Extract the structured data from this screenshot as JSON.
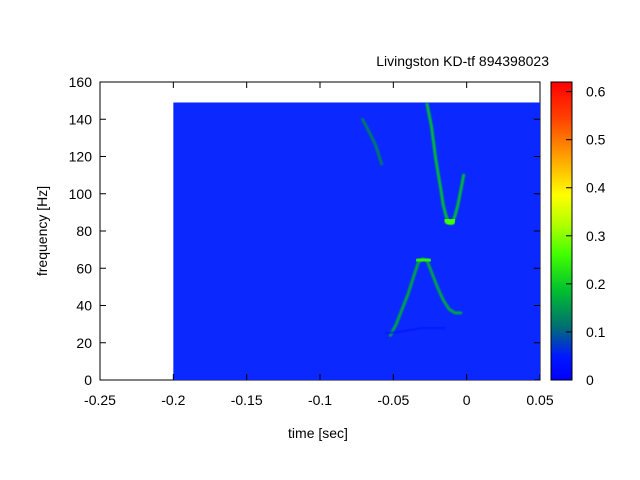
{
  "chart_data": {
    "type": "heatmap",
    "title": "Livingston KD-tf 894398023",
    "xlabel": "time [sec]",
    "ylabel": "frequency [Hz]",
    "xlim": [
      -0.25,
      0.05
    ],
    "ylim": [
      0,
      160
    ],
    "x_ticks": [
      "-0.25",
      "-0.2",
      "-0.15",
      "-0.1",
      "-0.05",
      "0",
      "0.05"
    ],
    "x_tick_values": [
      -0.25,
      -0.2,
      -0.15,
      -0.1,
      -0.05,
      0,
      0.05
    ],
    "y_ticks": [
      "0",
      "20",
      "40",
      "60",
      "80",
      "100",
      "120",
      "140",
      "160"
    ],
    "y_tick_values": [
      0,
      20,
      40,
      60,
      80,
      100,
      120,
      140,
      160
    ],
    "data_extent": {
      "time": [
        -0.2,
        0.05
      ],
      "frequency": [
        0,
        149
      ]
    },
    "background_value": 0.0,
    "colorbar": {
      "range": [
        0,
        0.62
      ],
      "ticks": [
        "0",
        "0.1",
        "0.2",
        "0.3",
        "0.4",
        "0.5",
        "0.6"
      ],
      "tick_values": [
        0,
        0.1,
        0.2,
        0.3,
        0.4,
        0.5,
        0.6
      ]
    },
    "tracks": [
      {
        "name": "upper-arc",
        "points": [
          [
            -0.071,
            140
          ],
          [
            -0.067,
            134
          ],
          [
            -0.062,
            126
          ],
          [
            -0.058,
            116
          ]
        ],
        "value": 0.12
      },
      {
        "name": "upper-chirp",
        "points": [
          [
            -0.027,
            148
          ],
          [
            -0.024,
            136
          ],
          [
            -0.021,
            118
          ],
          [
            -0.018,
            104
          ],
          [
            -0.016,
            94
          ],
          [
            -0.014,
            88
          ],
          [
            -0.012,
            84
          ],
          [
            -0.01,
            84
          ],
          [
            -0.008,
            88
          ],
          [
            -0.006,
            94
          ],
          [
            -0.004,
            102
          ],
          [
            -0.002,
            110
          ]
        ],
        "value": 0.18
      },
      {
        "name": "upper-peak",
        "points": [
          [
            -0.014,
            86
          ],
          [
            -0.011,
            84
          ],
          [
            -0.009,
            86
          ]
        ],
        "value": 0.26
      },
      {
        "name": "upper-cap",
        "points": [
          [
            -0.001,
            114
          ],
          [
            0.002,
            114
          ]
        ],
        "value": 0.1
      },
      {
        "name": "lower-chirp",
        "points": [
          [
            -0.052,
            24
          ],
          [
            -0.048,
            30
          ],
          [
            -0.044,
            38
          ],
          [
            -0.04,
            46
          ],
          [
            -0.036,
            56
          ],
          [
            -0.033,
            63
          ],
          [
            -0.03,
            65
          ],
          [
            -0.027,
            64
          ],
          [
            -0.024,
            58
          ],
          [
            -0.02,
            50
          ],
          [
            -0.016,
            43
          ],
          [
            -0.012,
            38
          ],
          [
            -0.008,
            36
          ],
          [
            -0.004,
            36
          ]
        ],
        "value": 0.16
      },
      {
        "name": "lower-peak",
        "points": [
          [
            -0.033,
            64
          ],
          [
            -0.029,
            65
          ],
          [
            -0.026,
            64
          ]
        ],
        "value": 0.24
      },
      {
        "name": "faint-floor",
        "points": [
          [
            -0.055,
            25
          ],
          [
            -0.045,
            26
          ],
          [
            -0.03,
            28
          ],
          [
            -0.015,
            28
          ]
        ],
        "value": 0.04
      }
    ]
  }
}
